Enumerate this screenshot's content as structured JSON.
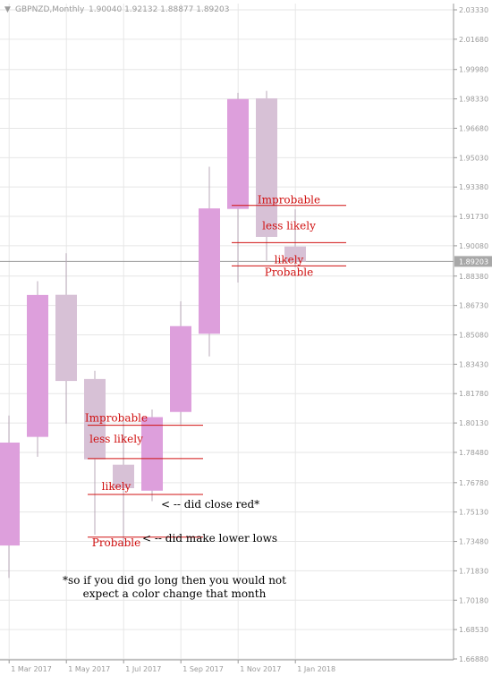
{
  "header": {
    "symbol": "GBPNZD,Monthly",
    "ohlc": "1.90040 1.92132 1.88877 1.89203"
  },
  "colors": {
    "bull": "#dd9fdc",
    "bear": "#d7c1d6",
    "wick": "#b8a8b8",
    "grid": "#e6e6e6",
    "axis": "#9a9a9a",
    "price_line": "#9a9a9a",
    "annotation_red": "#d01010",
    "annotation_black": "#000000",
    "axis_text": "#9a9a9a",
    "price_label_bg": "#a8a8a8",
    "price_label_text": "#ffffff"
  },
  "chart_data": {
    "type": "candlestick",
    "title": "GBPNZD,Monthly",
    "ylim": [
      1.6688,
      2.0331
    ],
    "grid": true,
    "y_ticks": [
      "2.03330",
      "2.01680",
      "1.99980",
      "1.98330",
      "1.96680",
      "1.95030",
      "1.93380",
      "1.91730",
      "1.90080",
      "1.88380",
      "1.86730",
      "1.85080",
      "1.83430",
      "1.81780",
      "1.80130",
      "1.78480",
      "1.76780",
      "1.75130",
      "1.73480",
      "1.71830",
      "1.70180",
      "1.68530",
      "1.66880"
    ],
    "x_labels": [
      {
        "label": "1 Mar 2017",
        "index": 0.35
      },
      {
        "label": "1 May 2017",
        "index": 2.35
      },
      {
        "label": "1 Jul 2017",
        "index": 4.35
      },
      {
        "label": "1 Sep 2017",
        "index": 6.35
      },
      {
        "label": "1 Nov 2017",
        "index": 8.35
      },
      {
        "label": "1 Jan 2018",
        "index": 10.35
      }
    ],
    "current_price": {
      "label": "1.89203",
      "value": 1.89203
    },
    "candles": [
      {
        "month": "Feb 2017",
        "open": 1.7325,
        "high": 1.8055,
        "low": 1.7143,
        "close": 1.7903
      },
      {
        "month": "Mar 2017",
        "open": 1.7935,
        "high": 1.8809,
        "low": 1.7823,
        "close": 1.8732
      },
      {
        "month": "Apr 2017",
        "open": 1.8733,
        "high": 1.8966,
        "low": 1.801,
        "close": 1.8249
      },
      {
        "month": "May 2017",
        "open": 1.826,
        "high": 1.8306,
        "low": 1.7386,
        "close": 1.7809
      },
      {
        "month": "Jun 2017",
        "open": 1.7779,
        "high": 1.8025,
        "low": 1.7328,
        "close": 1.7647
      },
      {
        "month": "Jul 2017",
        "open": 1.7633,
        "high": 1.8089,
        "low": 1.7574,
        "close": 1.8046
      },
      {
        "month": "Aug 2017",
        "open": 1.8075,
        "high": 1.8696,
        "low": 1.8006,
        "close": 1.8557
      },
      {
        "month": "Sep 2017",
        "open": 1.8514,
        "high": 1.9452,
        "low": 1.8387,
        "close": 1.9218
      },
      {
        "month": "Oct 2017",
        "open": 1.9215,
        "high": 1.9867,
        "low": 1.8802,
        "close": 1.9832
      },
      {
        "month": "Nov 2017",
        "open": 1.9836,
        "high": 1.9878,
        "low": 1.8925,
        "close": 1.9058
      },
      {
        "month": "Dec 2017",
        "open": 1.9004,
        "high": 1.9213,
        "low": 1.8888,
        "close": 1.892
      }
    ],
    "levels": [
      {
        "group": "upper",
        "label": "Improbable",
        "value": 1.9235
      },
      {
        "group": "upper",
        "label": "less likely",
        "value": 1.9026
      },
      {
        "group": "upper",
        "label": "likely",
        "value": 1.8895
      },
      {
        "group": "upper",
        "label": "Probable",
        "value": 1.8895
      },
      {
        "group": "lower",
        "label": "Improbable",
        "value": 1.8
      },
      {
        "group": "lower",
        "label": "less likely",
        "value": 1.7813
      },
      {
        "group": "lower",
        "label": "likely",
        "value": 1.7612
      },
      {
        "group": "lower",
        "label": "Probable",
        "value": 1.7372
      }
    ],
    "notes": {
      "close_red": "< -- did close red*",
      "lower_lows": "< -- did make lower lows",
      "footnote_line1": "*so if you did go long then you would not",
      "footnote_line2": "expect a color change that month"
    }
  }
}
